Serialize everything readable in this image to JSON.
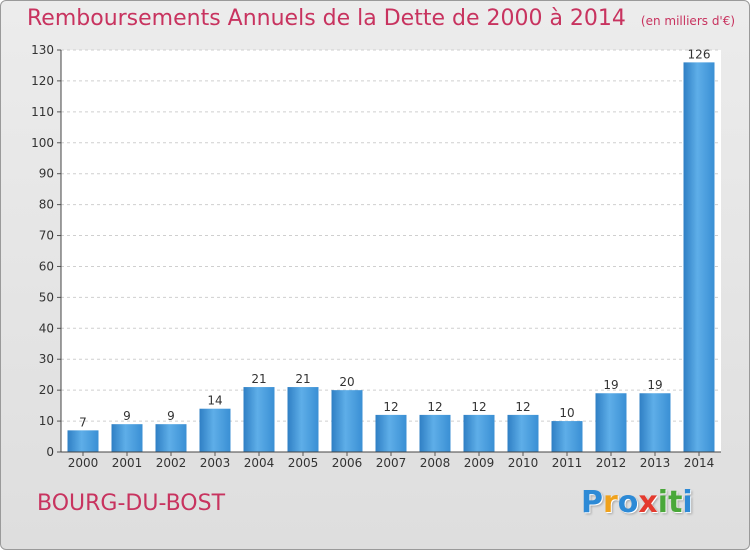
{
  "chart_data": {
    "type": "bar",
    "title": "Remboursements Annuels de la Dette de 2000 à 2014",
    "subtitle": "(en milliers d'€)",
    "categories": [
      "2000",
      "2001",
      "2002",
      "2003",
      "2004",
      "2005",
      "2006",
      "2007",
      "2008",
      "2009",
      "2010",
      "2011",
      "2012",
      "2013",
      "2014"
    ],
    "values": [
      7,
      9,
      9,
      14,
      21,
      21,
      20,
      12,
      12,
      12,
      12,
      10,
      19,
      19,
      126
    ],
    "ylim": [
      0,
      130
    ],
    "yticks": [
      0,
      10,
      20,
      30,
      40,
      50,
      60,
      70,
      80,
      90,
      100,
      110,
      120,
      130
    ],
    "grid": true,
    "bar_color": "#3a8fd4"
  },
  "footer": {
    "place": "BOURG-DU-BOST",
    "logo_letters": [
      "P",
      "r",
      "o",
      "x",
      "i",
      "t",
      "i"
    ],
    "logo_colors": [
      "#2d8ad6",
      "#f0a21c",
      "#2d8ad6",
      "#e43a2e",
      "#4aa83a",
      "#4aa83a",
      "#2d8ad6"
    ]
  }
}
